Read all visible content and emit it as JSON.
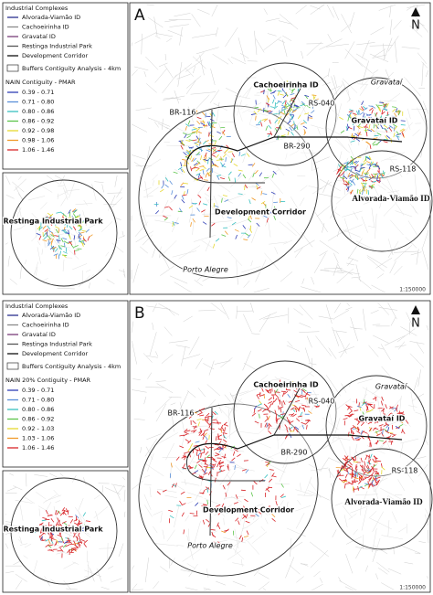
{
  "panels": [
    {
      "panel_label": "A",
      "north": "N",
      "legend": {
        "title": "Industrial Complexes",
        "items": [
          {
            "label": "Alvorada-Viamão ID",
            "color": "#2b2f8f"
          },
          {
            "label": "Cachoeirinha ID",
            "color": "#8a8a8a"
          },
          {
            "label": "Gravataí ID",
            "color": "#7a3d7a"
          },
          {
            "label": "Restinga Industrial Park",
            "color": "#555555"
          },
          {
            "label": "Development Corridor",
            "color": "#111111"
          }
        ],
        "buffer": "Buffers Contiguity Analysis - 4km",
        "class_title": "NAIN Contiguity - PMAR",
        "classes": [
          {
            "label": "0.39 - 0.71",
            "color": "#2f3fb5"
          },
          {
            "label": "0.71 - 0.80",
            "color": "#5a8fd8"
          },
          {
            "label": "0.80 - 0.86",
            "color": "#38c0c0"
          },
          {
            "label": "0.86 - 0.92",
            "color": "#5cc44a"
          },
          {
            "label": "0.92 - 0.98",
            "color": "#e6d830"
          },
          {
            "label": "0.98 - 1.06",
            "color": "#f09a2a"
          },
          {
            "label": "1.06 - 1.46",
            "color": "#d8262a"
          }
        ]
      },
      "map_labels": {
        "cachoeirinha": "Cachoeirinha ID",
        "gravatai_city": "Gravataí",
        "rs040": "RS-040",
        "gravatai_id": "Gravataí ID",
        "br116": "BR-116",
        "br290": "BR-290",
        "rs118": "RS-118",
        "alvorada": "Alvorada-Viamão ID",
        "corridor": "Development Corridor",
        "porto_alegre": "Porto Alegre"
      },
      "inset_label": "Restinga Industrial Park",
      "scale": "1:150000"
    },
    {
      "panel_label": "B",
      "north": "N",
      "legend": {
        "title": "Industrial Complexes",
        "items": [
          {
            "label": "Alvorada-Viamão ID",
            "color": "#2b2f8f"
          },
          {
            "label": "Cachoeirinha ID",
            "color": "#8a8a8a"
          },
          {
            "label": "Gravataí ID",
            "color": "#7a3d7a"
          },
          {
            "label": "Restinga Industrial Park",
            "color": "#555555"
          },
          {
            "label": "Development Corridor",
            "color": "#111111"
          }
        ],
        "buffer": "Buffers Contiguity Analysis - 4km",
        "class_title": "NAIN 20% Contiguity - PMAR",
        "classes": [
          {
            "label": "0.39 - 0.71",
            "color": "#2f3fb5"
          },
          {
            "label": "0.71 - 0.80",
            "color": "#5a8fd8"
          },
          {
            "label": "0.80 - 0.86",
            "color": "#38c0c0"
          },
          {
            "label": "0.86 - 0.92",
            "color": "#5cc44a"
          },
          {
            "label": "0.92 - 1.03",
            "color": "#e6d830"
          },
          {
            "label": "1.03 - 1.06",
            "color": "#f09a2a"
          },
          {
            "label": "1.06 - 1.46",
            "color": "#d8262a"
          }
        ]
      },
      "map_labels": {
        "cachoeirinha": "Cachoeirinha ID",
        "gravatai_city": "Gravataí",
        "rs040": "RS-040",
        "gravatai_id": "Gravataí ID",
        "br116": "BR-116",
        "br290": "BR-290",
        "rs118": "RS-118",
        "alvorada": "Alvorada-Viamão ID",
        "corridor": "Development Corridor",
        "porto_alegre": "Porto Alegre"
      },
      "inset_label": "Restinga Industrial Park",
      "scale": "1:150000"
    }
  ]
}
